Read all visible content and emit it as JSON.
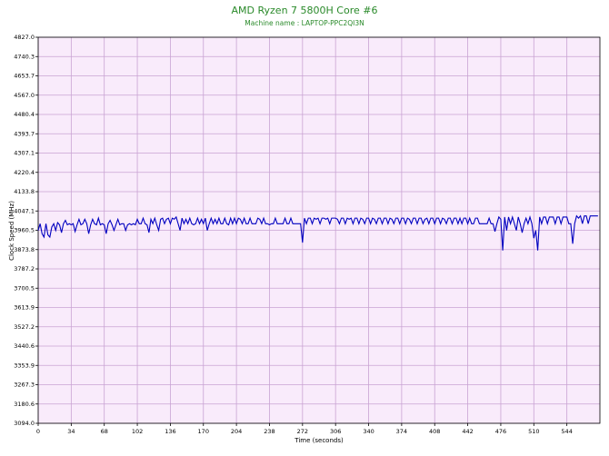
{
  "chart_data": {
    "type": "line",
    "title": "AMD Ryzen 7 5800H Core #6",
    "subtitle": "Machine name : LAPTOP-PPC2QI3N",
    "x_label": "Time (seconds)",
    "y_label": "Clock Speed (MHz)",
    "grid": true,
    "background": "#f9ebfb",
    "grid_color": "#c9a3d3",
    "title_color": "#2a8a2a",
    "xlim": [
      0,
      578
    ],
    "xticks": [
      0,
      34,
      68,
      102,
      136,
      170,
      204,
      238,
      272,
      306,
      340,
      374,
      408,
      442,
      476,
      510,
      544
    ],
    "ylim": [
      3094,
      4827
    ],
    "yticks": [
      {
        "value": 3094.0,
        "label": "3094.0"
      },
      {
        "value": 3180.6,
        "label": "3180.6"
      },
      {
        "value": 3267.3,
        "label": "3267.3"
      },
      {
        "value": 3353.9,
        "label": "3353.9"
      },
      {
        "value": 3440.6,
        "label": "3440.6"
      },
      {
        "value": 3527.2,
        "label": "3527.2"
      },
      {
        "value": 3613.9,
        "label": "3613.9"
      },
      {
        "value": 3700.5,
        "label": "3700.5"
      },
      {
        "value": 3787.2,
        "label": "3787.2"
      },
      {
        "value": 3873.8,
        "label": "3873.8"
      },
      {
        "value": 3960.5,
        "label": "3960.5"
      },
      {
        "value": 4047.1,
        "label": "4047.1"
      },
      {
        "value": 4133.8,
        "label": "4133.8"
      },
      {
        "value": 4220.4,
        "label": "4220.4"
      },
      {
        "value": 4307.1,
        "label": "4307.1"
      },
      {
        "value": 4393.7,
        "label": "4393.7"
      },
      {
        "value": 4480.4,
        "label": "4480.4"
      },
      {
        "value": 4567.0,
        "label": "4567.0"
      },
      {
        "value": 4653.7,
        "label": "4653.7"
      },
      {
        "value": 4740.3,
        "label": "4740.3"
      },
      {
        "value": 4827.0,
        "label": "4827.0"
      }
    ],
    "x": [
      0,
      2,
      4,
      6,
      8,
      10,
      12,
      14,
      16,
      18,
      20,
      22,
      24,
      26,
      28,
      30,
      32,
      34,
      36,
      38,
      40,
      42,
      44,
      46,
      48,
      50,
      52,
      54,
      56,
      58,
      60,
      62,
      64,
      66,
      68,
      70,
      72,
      74,
      76,
      78,
      80,
      82,
      84,
      86,
      88,
      90,
      92,
      94,
      96,
      98,
      100,
      102,
      104,
      106,
      108,
      110,
      112,
      114,
      116,
      118,
      120,
      122,
      124,
      126,
      128,
      130,
      132,
      134,
      136,
      138,
      140,
      142,
      144,
      146,
      148,
      150,
      152,
      154,
      156,
      158,
      160,
      162,
      164,
      166,
      168,
      170,
      172,
      174,
      176,
      178,
      180,
      182,
      184,
      186,
      188,
      190,
      192,
      194,
      196,
      198,
      200,
      202,
      204,
      206,
      208,
      210,
      212,
      214,
      216,
      218,
      220,
      222,
      224,
      226,
      228,
      230,
      232,
      234,
      236,
      238,
      240,
      242,
      244,
      246,
      248,
      250,
      252,
      254,
      256,
      258,
      260,
      262,
      264,
      266,
      268,
      270,
      272,
      274,
      276,
      278,
      280,
      282,
      284,
      286,
      288,
      290,
      292,
      294,
      296,
      298,
      300,
      302,
      304,
      306,
      308,
      310,
      312,
      314,
      316,
      318,
      320,
      322,
      324,
      326,
      328,
      330,
      332,
      334,
      336,
      338,
      340,
      342,
      344,
      346,
      348,
      350,
      352,
      354,
      356,
      358,
      360,
      362,
      364,
      366,
      368,
      370,
      372,
      374,
      376,
      378,
      380,
      382,
      384,
      386,
      388,
      390,
      392,
      394,
      396,
      398,
      400,
      402,
      404,
      406,
      408,
      410,
      412,
      414,
      416,
      418,
      420,
      422,
      424,
      426,
      428,
      430,
      432,
      434,
      436,
      438,
      440,
      442,
      444,
      446,
      448,
      450,
      452,
      454,
      456,
      458,
      460,
      462,
      464,
      466,
      468,
      470,
      472,
      474,
      476,
      478,
      480,
      482,
      484,
      486,
      488,
      490,
      492,
      494,
      496,
      498,
      500,
      502,
      504,
      506,
      508,
      510,
      512,
      514,
      516,
      518,
      520,
      522,
      524,
      526,
      528,
      530,
      532,
      534,
      536,
      538,
      540,
      542,
      544,
      546,
      548,
      550,
      552,
      554,
      556,
      558,
      560,
      562,
      564,
      566,
      568,
      570,
      572,
      574,
      576
    ],
    "series": [
      {
        "name": "Core #6",
        "color": "#0000c0",
        "values": [
          3960,
          3990,
          3945,
          3930,
          3990,
          3940,
          3930,
          3975,
          3990,
          3960,
          3995,
          3985,
          3950,
          3990,
          4005,
          3985,
          3990,
          3985,
          3990,
          3955,
          3985,
          4010,
          3985,
          3990,
          4010,
          3990,
          3945,
          3985,
          4010,
          3990,
          3985,
          4015,
          3985,
          3990,
          3985,
          3945,
          3990,
          4005,
          3985,
          3960,
          3985,
          4010,
          3985,
          3990,
          3990,
          3960,
          3985,
          3990,
          3985,
          3990,
          3985,
          4010,
          3990,
          3990,
          4015,
          3990,
          3985,
          3950,
          4010,
          3990,
          4015,
          3985,
          3960,
          4010,
          4015,
          3990,
          4010,
          4015,
          3990,
          4015,
          4010,
          4020,
          3990,
          3960,
          4015,
          3990,
          4010,
          3990,
          4015,
          3990,
          3985,
          3990,
          4015,
          3990,
          4010,
          3990,
          4015,
          3960,
          3990,
          4015,
          3990,
          4010,
          3990,
          4015,
          3990,
          3990,
          4015,
          3990,
          3985,
          4015,
          3990,
          4015,
          3990,
          4015,
          4010,
          3990,
          4015,
          3990,
          3990,
          4015,
          3990,
          3990,
          3990,
          4015,
          4010,
          3990,
          4015,
          3990,
          3990,
          3985,
          3990,
          3990,
          4015,
          3990,
          3990,
          3990,
          3990,
          4015,
          3990,
          3990,
          4015,
          3990,
          3990,
          3990,
          3990,
          3990,
          3905,
          4015,
          3990,
          4015,
          4015,
          3990,
          4015,
          4010,
          4015,
          3990,
          4015,
          4015,
          4010,
          4015,
          3990,
          4015,
          4015,
          4015,
          4010,
          3990,
          4015,
          4015,
          3990,
          4015,
          4010,
          4015,
          3990,
          4015,
          4015,
          3990,
          4015,
          4010,
          3990,
          4015,
          4015,
          3990,
          4015,
          4010,
          3990,
          4015,
          4015,
          3990,
          4015,
          4015,
          3990,
          4015,
          4010,
          3990,
          4015,
          4015,
          3990,
          4015,
          4015,
          3990,
          4015,
          4010,
          3990,
          4015,
          4015,
          3990,
          4015,
          4015,
          3990,
          4010,
          4015,
          3990,
          4015,
          4015,
          3990,
          4015,
          4015,
          3990,
          4015,
          4010,
          3990,
          4015,
          4015,
          3990,
          4015,
          4015,
          3990,
          4015,
          3990,
          4015,
          4015,
          3990,
          4015,
          3990,
          3990,
          4015,
          4015,
          3990,
          3990,
          3990,
          3990,
          3990,
          4015,
          3990,
          3990,
          3955,
          3990,
          4020,
          4010,
          3870,
          4020,
          3960,
          4020,
          3990,
          4020,
          3990,
          3960,
          4020,
          3990,
          3950,
          3990,
          4015,
          3990,
          4020,
          3990,
          3925,
          3960,
          3870,
          4020,
          3990,
          4020,
          4020,
          3990,
          4020,
          4020,
          4020,
          3990,
          4020,
          4020,
          3990,
          4020,
          4020,
          4020,
          3990,
          3990,
          3900,
          3990,
          4025,
          4015,
          4025,
          3990,
          4025,
          4025,
          3990,
          4025,
          4025,
          4025,
          4025,
          4025
        ]
      }
    ]
  }
}
